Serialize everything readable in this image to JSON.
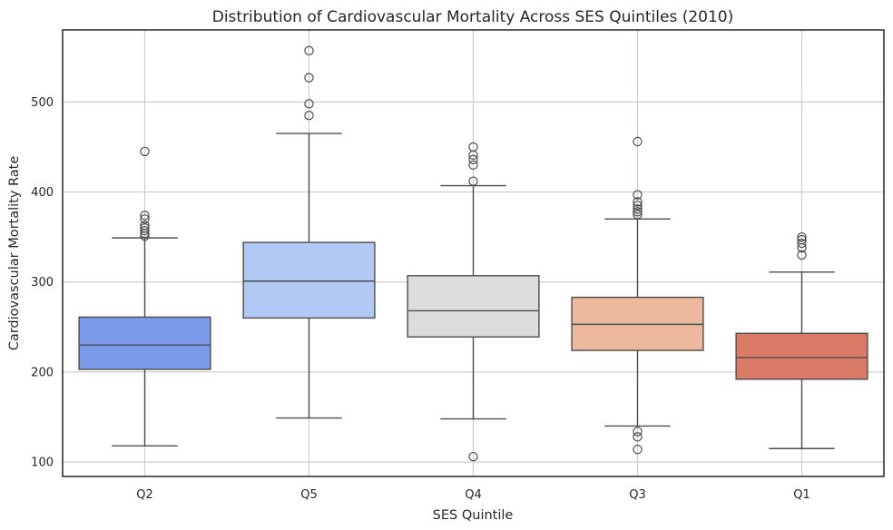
{
  "chart_data": {
    "type": "box",
    "title": "Distribution of Cardiovascular Mortality Across SES Quintiles (2010)",
    "xlabel": "SES Quintile",
    "ylabel": "Cardiovascular Mortality Rate",
    "ylim": [
      84,
      580
    ],
    "yticks": [
      100,
      200,
      300,
      400,
      500
    ],
    "grid": true,
    "categories": [
      "Q2",
      "Q5",
      "Q4",
      "Q3",
      "Q1"
    ],
    "boxes": [
      {
        "category": "Q2",
        "color": "#7b9bea",
        "whisker_low": 118,
        "q1": 203,
        "median": 230,
        "q3": 261,
        "whisker_high": 349,
        "outliers": [
          351,
          354,
          357,
          360,
          363,
          370,
          374,
          445
        ]
      },
      {
        "category": "Q5",
        "color": "#b2c9f5",
        "whisker_low": 149,
        "q1": 260,
        "median": 301,
        "q3": 344,
        "whisker_high": 465,
        "outliers": [
          485,
          498,
          527,
          557
        ]
      },
      {
        "category": "Q4",
        "color": "#dcdcdc",
        "whisker_low": 148,
        "q1": 239,
        "median": 268,
        "q3": 307,
        "whisker_high": 407,
        "outliers": [
          106,
          412,
          430,
          436,
          441,
          450
        ]
      },
      {
        "category": "Q3",
        "color": "#ecb89e",
        "whisker_low": 140,
        "q1": 224,
        "median": 253,
        "q3": 283,
        "whisker_high": 370,
        "outliers": [
          114,
          128,
          134,
          375,
          378,
          381,
          385,
          389,
          397,
          456
        ]
      },
      {
        "category": "Q1",
        "color": "#d97b67",
        "whisker_low": 115,
        "q1": 192,
        "median": 216,
        "q3": 243,
        "whisker_high": 311,
        "outliers": [
          330,
          338,
          343,
          347,
          350
        ]
      }
    ]
  }
}
